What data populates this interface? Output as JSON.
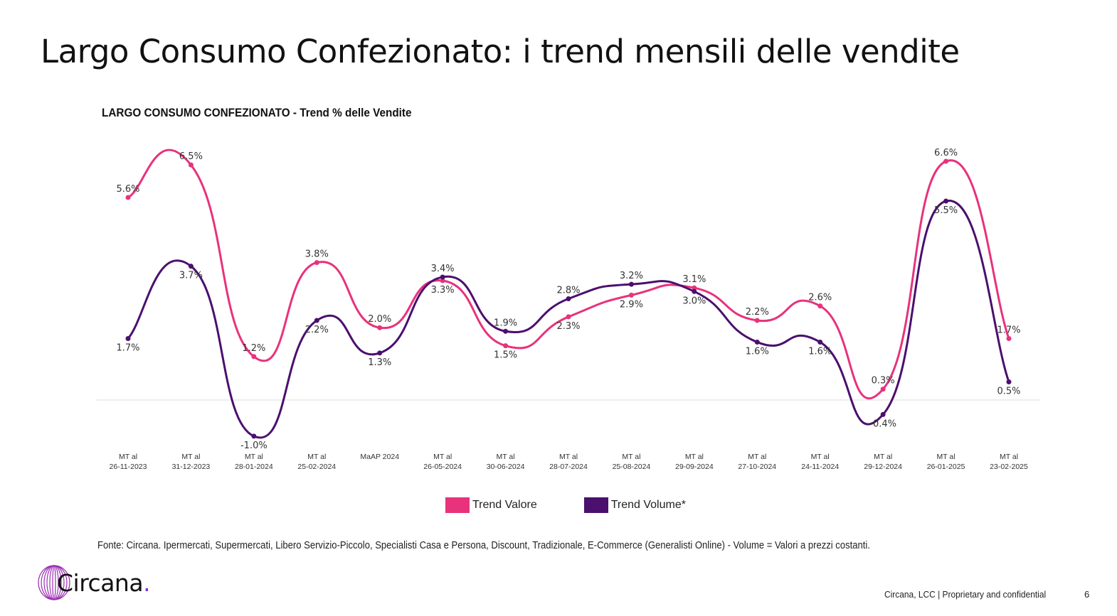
{
  "page": {
    "title": "Largo Consumo Confezionato: i trend mensili delle vendite",
    "source": "Fonte: Circana. Ipermercati, Supermercati, Libero Servizio-Piccolo, Specialisti Casa e Persona, Discount, Tradizionale, E-Commerce (Generalisti Online) - Volume = Valori a prezzi costanti.",
    "footer": "Circana, LCC |  Proprietary and confidential",
    "page_number": "6",
    "logo_text": "Circana",
    "logo_dot": "."
  },
  "chart_data": {
    "type": "line",
    "title": "LARGO CONSUMO CONFEZIONATO - Trend % delle Vendite",
    "categories": [
      [
        "MT al",
        "26-11-2023"
      ],
      [
        "MT al",
        "31-12-2023"
      ],
      [
        "MT al",
        "28-01-2024"
      ],
      [
        "MT al",
        "25-02-2024"
      ],
      [
        "MaAP 2024",
        ""
      ],
      [
        "MT al",
        "26-05-2024"
      ],
      [
        "MT al",
        "30-06-2024"
      ],
      [
        "MT al",
        "28-07-2024"
      ],
      [
        "MT al",
        "25-08-2024"
      ],
      [
        "MT al",
        "29-09-2024"
      ],
      [
        "MT al",
        "27-10-2024"
      ],
      [
        "MT al",
        "24-11-2024"
      ],
      [
        "MT al",
        "29-12-2024"
      ],
      [
        "MT al",
        "26-01-2025"
      ],
      [
        "MT al",
        "23-02-2025"
      ]
    ],
    "series": [
      {
        "name": "Trend Valore",
        "color": "#e8327c",
        "values": [
          5.6,
          6.5,
          1.2,
          3.8,
          2.0,
          3.3,
          1.5,
          2.3,
          2.9,
          3.1,
          2.2,
          2.6,
          0.3,
          6.6,
          1.7
        ]
      },
      {
        "name": "Trend Volume*",
        "color": "#4b0f6e",
        "values": [
          1.7,
          3.7,
          -1.0,
          2.2,
          1.3,
          3.4,
          1.9,
          2.8,
          3.2,
          3.0,
          1.6,
          1.6,
          -0.4,
          5.5,
          0.5
        ]
      }
    ],
    "value_format": "%",
    "zero_line": true,
    "grid": false,
    "legend_position": "bottom"
  }
}
